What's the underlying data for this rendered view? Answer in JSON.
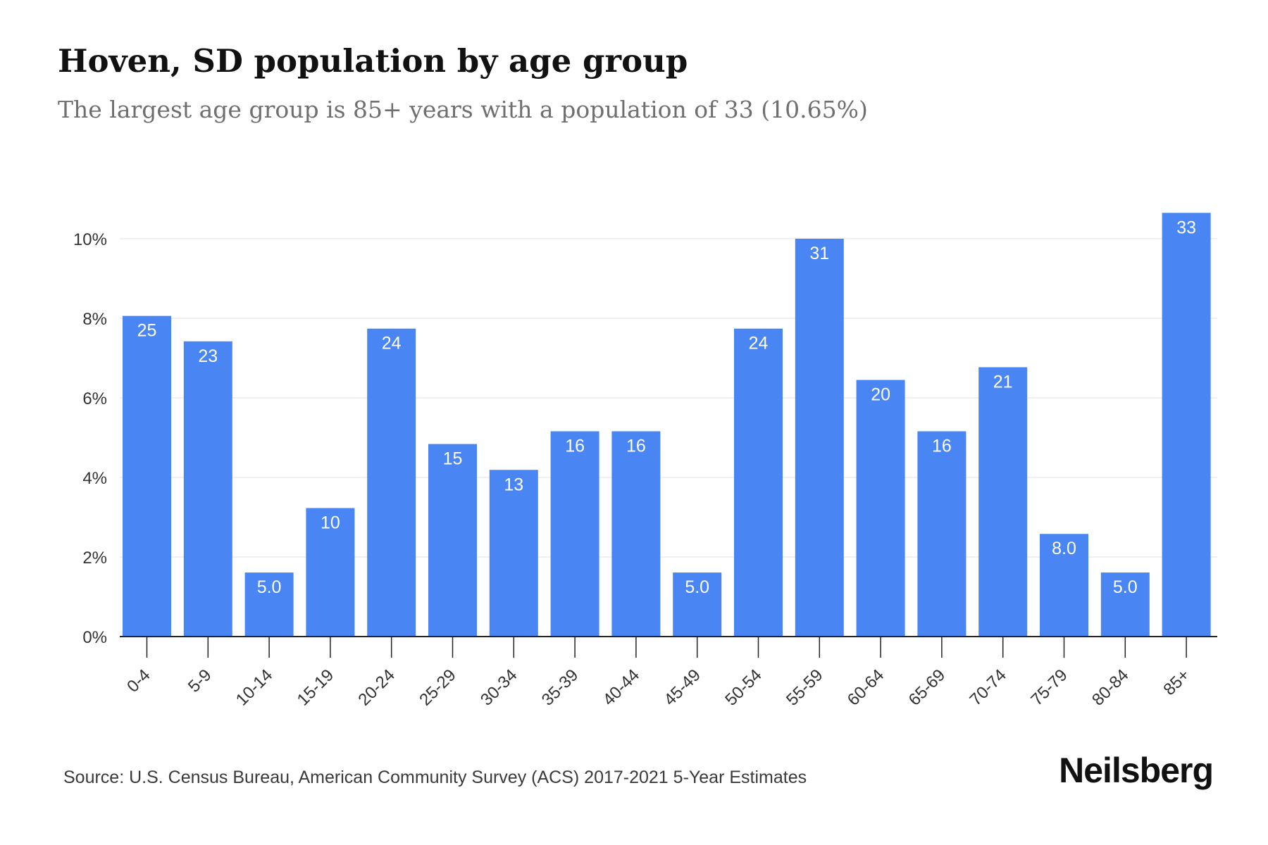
{
  "header": {
    "title": "Hoven, SD population by age group",
    "subtitle": "The largest age group is 85+ years with a population of 33 (10.65%)"
  },
  "footer": {
    "source": "Source: U.S. Census Bureau, American Community Survey (ACS) 2017-2021 5-Year Estimates",
    "brand": "Neilsberg"
  },
  "colors": {
    "bar": "#4a86f3",
    "label": "#ffffff",
    "grid": "#ececec",
    "axis": "#222222",
    "tick_text": "#333333"
  },
  "chart_data": {
    "type": "bar",
    "title": "Hoven, SD population by age group",
    "subtitle": "The largest age group is 85+ years with a population of 33 (10.65%)",
    "xlabel": "",
    "ylabel": "",
    "categories": [
      "0-4",
      "5-9",
      "10-14",
      "15-19",
      "20-24",
      "25-29",
      "30-34",
      "35-39",
      "40-44",
      "45-49",
      "50-54",
      "55-59",
      "60-64",
      "65-69",
      "70-74",
      "75-79",
      "80-84",
      "85+"
    ],
    "values": [
      8.06,
      7.42,
      1.61,
      3.23,
      7.74,
      4.84,
      4.19,
      5.16,
      5.16,
      1.61,
      7.74,
      10.0,
      6.45,
      5.16,
      6.77,
      2.58,
      1.61,
      10.65
    ],
    "data_labels": [
      "25",
      "23",
      "5.0",
      "10",
      "24",
      "15",
      "13",
      "16",
      "16",
      "5.0",
      "24",
      "31",
      "20",
      "16",
      "21",
      "8.0",
      "5.0",
      "33"
    ],
    "yticks": [
      0,
      2,
      4,
      6,
      8,
      10
    ],
    "ytick_labels": [
      "0%",
      "2%",
      "4%",
      "6%",
      "8%",
      "10%"
    ],
    "ylim": [
      0,
      10.65
    ],
    "grid": true,
    "legend": "none"
  }
}
